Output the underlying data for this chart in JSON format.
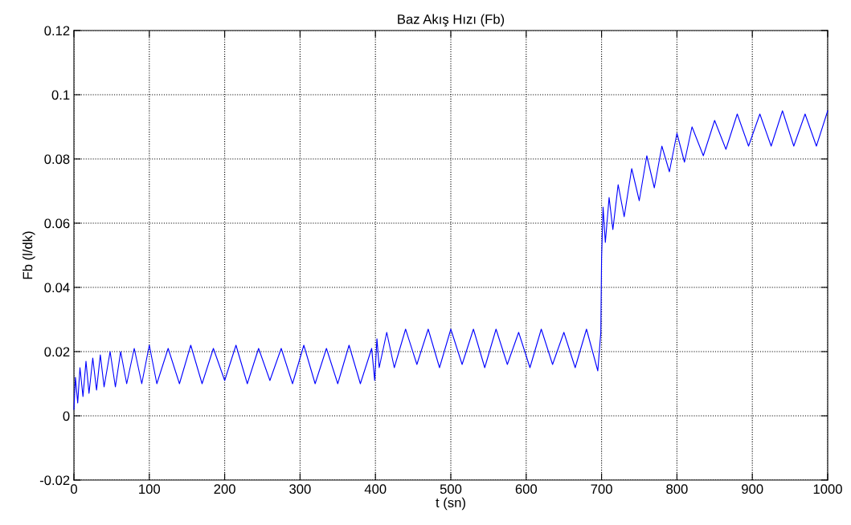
{
  "chart_data": {
    "type": "line",
    "title": "Baz Akış Hızı (Fb)",
    "xlabel": "t (sn)",
    "ylabel": "Fb (l/dk)",
    "xlim": [
      0,
      1000
    ],
    "xticks": [
      0,
      100,
      200,
      300,
      400,
      500,
      600,
      700,
      800,
      900,
      1000
    ],
    "ylim": [
      -0.02,
      0.12
    ],
    "yticks": [
      -0.02,
      0,
      0.02,
      0.04,
      0.06,
      0.08,
      0.1,
      0.12
    ],
    "grid": true,
    "marker": "none",
    "line_style": "solid",
    "series": [
      {
        "color": "#0000ff",
        "x": [
          0,
          2,
          5,
          8,
          12,
          16,
          20,
          25,
          30,
          35,
          40,
          48,
          55,
          62,
          70,
          80,
          90,
          100,
          110,
          125,
          140,
          155,
          170,
          185,
          200,
          215,
          230,
          245,
          260,
          275,
          290,
          305,
          320,
          335,
          350,
          365,
          380,
          395,
          399,
          402,
          405,
          415,
          425,
          440,
          455,
          470,
          485,
          500,
          515,
          530,
          545,
          560,
          575,
          590,
          605,
          620,
          635,
          650,
          665,
          680,
          695,
          699,
          700,
          702,
          705,
          710,
          715,
          722,
          730,
          740,
          750,
          760,
          770,
          780,
          790,
          800,
          810,
          820,
          835,
          850,
          865,
          880,
          895,
          910,
          925,
          940,
          955,
          970,
          985,
          1000
        ],
        "values": [
          0.002,
          0.012,
          0.004,
          0.015,
          0.006,
          0.017,
          0.007,
          0.018,
          0.008,
          0.019,
          0.009,
          0.02,
          0.009,
          0.02,
          0.01,
          0.021,
          0.01,
          0.022,
          0.01,
          0.021,
          0.01,
          0.022,
          0.01,
          0.021,
          0.011,
          0.022,
          0.01,
          0.021,
          0.011,
          0.021,
          0.01,
          0.022,
          0.01,
          0.021,
          0.01,
          0.022,
          0.01,
          0.021,
          0.011,
          0.024,
          0.015,
          0.026,
          0.015,
          0.027,
          0.016,
          0.027,
          0.015,
          0.027,
          0.016,
          0.027,
          0.015,
          0.027,
          0.016,
          0.026,
          0.015,
          0.027,
          0.016,
          0.026,
          0.015,
          0.027,
          0.014,
          0.026,
          0.049,
          0.065,
          0.054,
          0.068,
          0.058,
          0.072,
          0.062,
          0.077,
          0.067,
          0.081,
          0.071,
          0.084,
          0.076,
          0.088,
          0.079,
          0.09,
          0.081,
          0.092,
          0.083,
          0.094,
          0.084,
          0.094,
          0.084,
          0.095,
          0.084,
          0.094,
          0.084,
          0.095
        ]
      }
    ]
  }
}
